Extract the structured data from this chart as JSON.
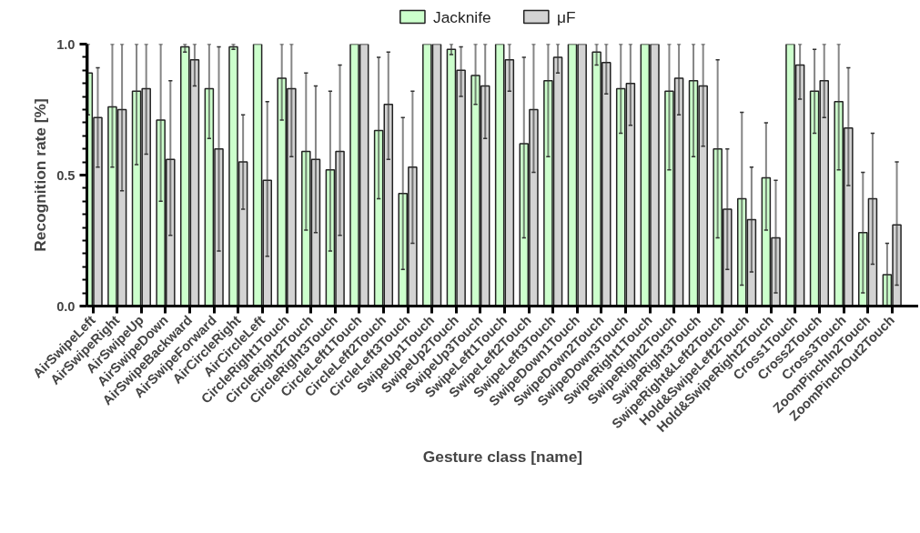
{
  "chart_data": {
    "type": "bar",
    "xlabel": "Gesture class [name]",
    "ylabel": "Recognition rate [%]",
    "categories": [
      "AirSwipeLeft",
      "AirSwipeRight",
      "AirSwipeUp",
      "AirSwipeDown",
      "AirSwipeBackward",
      "AirSwipeForward",
      "AirCircleRight",
      "AirCircleLeft",
      "CircleRight1Touch",
      "CircleRight2Touch",
      "CircleRight3Touch",
      "CircleLeft1Touch",
      "CircleLeft2Touch",
      "CircleLeft3Touch",
      "SwipeUp1Touch",
      "SwipeUp2Touch",
      "SwipeUp3Touch",
      "SwipeLeft1Touch",
      "SwipeLeft2Touch",
      "SwipeLeft3Touch",
      "SwipeDown1Touch",
      "SwipeDown2Touch",
      "SwipeDown3Touch",
      "SwipeRight1Touch",
      "SwipeRight2Touch",
      "SwipeRight3Touch",
      "SwipeRight&Left2Touch",
      "Hold&SwipeLeft2Touch",
      "Hold&SwipeRight2Touch",
      "Cross1Touch",
      "Cross2Touch",
      "Cross3Touch",
      "ZoomPinchIn2Touch",
      "ZoomPinchOut2Touch"
    ],
    "series": [
      {
        "name": "Jacknife",
        "color": "#ccffcc",
        "values": [
          0.89,
          0.76,
          0.82,
          0.71,
          0.99,
          0.83,
          0.99,
          1.0,
          0.87,
          0.59,
          0.52,
          1.0,
          0.67,
          0.43,
          1.0,
          0.98,
          0.88,
          1.0,
          0.62,
          0.86,
          1.0,
          0.97,
          0.83,
          1.0,
          0.82,
          0.86,
          0.6,
          0.41,
          0.49,
          1.0,
          0.82,
          0.78,
          0.28,
          0.12
        ],
        "errors": [
          [
            0.73,
            1.0
          ],
          [
            0.53,
            1.0
          ],
          [
            0.54,
            1.0
          ],
          [
            0.4,
            1.0
          ],
          [
            0.97,
            1.0
          ],
          [
            0.64,
            1.0
          ],
          [
            0.98,
            1.0
          ],
          null,
          [
            0.71,
            1.0
          ],
          [
            0.29,
            0.89
          ],
          [
            0.21,
            0.82
          ],
          null,
          [
            0.41,
            0.95
          ],
          [
            0.14,
            0.72
          ],
          null,
          [
            0.96,
            1.0
          ],
          [
            0.77,
            1.0
          ],
          null,
          [
            0.26,
            0.95
          ],
          [
            0.57,
            1.0
          ],
          null,
          [
            0.92,
            1.0
          ],
          [
            0.66,
            1.0
          ],
          null,
          [
            0.52,
            1.0
          ],
          [
            0.57,
            1.0
          ],
          [
            0.26,
            0.94
          ],
          [
            0.08,
            0.74
          ],
          [
            0.29,
            0.7
          ],
          null,
          [
            0.66,
            0.98
          ],
          [
            0.52,
            1.0
          ],
          [
            0.05,
            0.51
          ],
          [
            0.0,
            0.24
          ]
        ]
      },
      {
        "name": "μF",
        "color": "#d3d3d3",
        "values": [
          0.72,
          0.75,
          0.83,
          0.56,
          0.94,
          0.6,
          0.55,
          0.48,
          0.83,
          0.56,
          0.59,
          1.0,
          0.77,
          0.53,
          1.0,
          0.9,
          0.84,
          0.94,
          0.75,
          0.95,
          1.0,
          0.93,
          0.85,
          1.0,
          0.87,
          0.84,
          0.37,
          0.33,
          0.26,
          0.92,
          0.86,
          0.68,
          0.41,
          0.31
        ],
        "errors": [
          [
            0.53,
            0.91
          ],
          [
            0.44,
            1.0
          ],
          [
            0.58,
            1.0
          ],
          [
            0.27,
            0.86
          ],
          [
            0.84,
            1.0
          ],
          [
            0.21,
            0.99
          ],
          [
            0.37,
            0.73
          ],
          [
            0.19,
            0.78
          ],
          [
            0.57,
            1.0
          ],
          [
            0.28,
            0.84
          ],
          [
            0.27,
            0.92
          ],
          null,
          [
            0.56,
            0.97
          ],
          [
            0.24,
            0.82
          ],
          null,
          [
            0.8,
            0.99
          ],
          [
            0.64,
            1.0
          ],
          [
            0.82,
            1.0
          ],
          [
            0.51,
            1.0
          ],
          [
            0.89,
            1.0
          ],
          null,
          [
            0.81,
            1.0
          ],
          [
            0.69,
            1.0
          ],
          null,
          [
            0.73,
            1.0
          ],
          [
            0.61,
            1.0
          ],
          [
            0.14,
            0.6
          ],
          [
            0.13,
            0.53
          ],
          [
            0.05,
            0.48
          ],
          [
            0.79,
            1.0
          ],
          [
            0.72,
            1.0
          ],
          [
            0.46,
            0.91
          ],
          [
            0.16,
            0.66
          ],
          [
            0.08,
            0.55
          ]
        ]
      }
    ],
    "ylim": [
      0,
      1.0
    ],
    "yticks": [
      {
        "value": 0,
        "label": "0.0"
      },
      {
        "value": 0.5,
        "label": "0.5"
      },
      {
        "value": 1.0,
        "label": "1.0"
      }
    ],
    "grid": false,
    "legend": "top"
  }
}
